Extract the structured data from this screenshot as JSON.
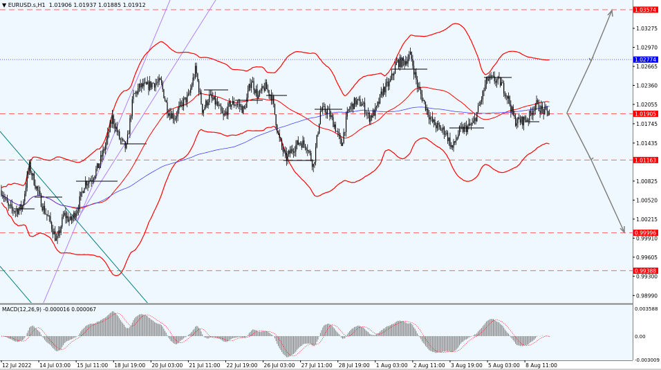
{
  "header": {
    "symbol": "EURUSD.s,H1",
    "ohlc": "1.01906 1.01937 1.01885 1.01912",
    "menu_icon": "triangle-down-icon"
  },
  "macd": {
    "label": "MACD(12,26,9)",
    "values": "-0.000016 0.000067",
    "ticks": [
      "0.003588",
      "0.00",
      "-0.003009"
    ]
  },
  "colors": {
    "background": "#f0f8ff",
    "candle": "#000000",
    "bands": "#ff0000",
    "ma": "#4040ff",
    "level": "#ff6060",
    "macd_hist": "#808080",
    "signal": "#ff0000",
    "channel": "#b080ff",
    "trendline": "#008080",
    "arrow": "#808080"
  },
  "chart_data": {
    "type": "candlestick",
    "title": "EURUSD.s,H1",
    "timeframe": "H1",
    "last_ohlc": {
      "open": 1.01906,
      "high": 1.01937,
      "low": 1.01885,
      "close": 1.01912
    },
    "approx_closes": [
      1.00679,
      1.00402,
      1.00347,
      1.00402,
      1.01068,
      1.00735,
      1.00402,
      1.0018,
      0.99848,
      1.00291,
      1.0018,
      1.00402,
      1.0079,
      1.00868,
      1.01068,
      1.014,
      1.01844,
      1.01511,
      1.01345,
      1.02177,
      1.02343,
      1.02343,
      1.024,
      1.024,
      1.01955,
      1.01844,
      1.02066,
      1.02177,
      1.0262,
      1.01955,
      1.02177,
      1.02066,
      1.01844,
      1.02066,
      1.02066,
      1.01955,
      1.02454,
      1.02177,
      1.02343,
      1.02177,
      1.01511,
      1.01179,
      1.01345,
      1.01456,
      1.014,
      1.01068,
      1.01955,
      1.01955,
      1.01733,
      1.014,
      1.01955,
      1.021,
      1.02066,
      1.01844,
      1.01955,
      1.02288,
      1.02398,
      1.02731,
      1.02731,
      1.02842,
      1.02343,
      1.02066,
      1.01789,
      1.01678,
      1.01622,
      1.01345,
      1.01622,
      1.01678,
      1.01733,
      1.02066,
      1.02454,
      1.02454,
      1.02398,
      1.02177,
      1.01789,
      1.01789,
      1.01844,
      1.02066,
      1.01955,
      1.01912
    ],
    "ylim": [
      0.9875,
      1.0372
    ],
    "yticks": [
      "1.03275",
      "1.02970",
      "1.02665",
      "1.02360",
      "1.02055",
      "1.01745",
      "1.01435",
      "1.00825",
      "1.00520",
      "1.00215",
      "0.99910",
      "0.99605",
      "0.99300",
      "0.98990"
    ],
    "xticks": [
      "12 Jul 2022",
      "14 Jul 03:00",
      "15 Jul 11:00",
      "18 Jul 19:00",
      "20 Jul 03:00",
      "21 Jul 11:00",
      "22 Jul 19:00",
      "26 Jul 03:00",
      "27 Jul 11:00",
      "28 Jul 19:00",
      "1 Aug 03:00",
      "2 Aug 11:00",
      "3 Aug 19:00",
      "5 Aug 03:00",
      "8 Aug 11:00"
    ],
    "levels": [
      {
        "price": "1.03574",
        "style": "dashed",
        "color": "#ff0000"
      },
      {
        "price": "1.02774",
        "style": "dotted",
        "color": "#0000ff"
      },
      {
        "price": "1.01905",
        "style": "dashed",
        "color": "#ff0000"
      },
      {
        "price": "1.01163",
        "style": "dashed",
        "color": "#ff0000"
      },
      {
        "price": "0.99996",
        "style": "dashed",
        "color": "#ff0000"
      },
      {
        "price": "0.99388",
        "style": "dashed",
        "color": "#ff0000"
      }
    ],
    "indicators": [
      "Bollinger Bands",
      "Moving Average",
      "MACD(12,26,9)"
    ],
    "grid": false
  }
}
